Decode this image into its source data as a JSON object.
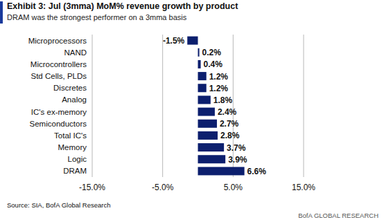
{
  "chart_data": {
    "type": "bar",
    "orientation": "horizontal",
    "title": "Exhibit 3: Jul (3mma) MoM% revenue growth by product",
    "subtitle": "DRAM was the strongest performer on a 3mma basis",
    "categories": [
      "Microprocessors",
      "NAND",
      "Microcontrollers",
      "Std Cells, PLDs",
      "Discretes",
      "Analog",
      "IC's ex-memory",
      "Semiconductors",
      "Total IC's",
      "Memory",
      "Logic",
      "DRAM"
    ],
    "values": [
      -1.5,
      0.2,
      0.4,
      1.2,
      1.2,
      1.8,
      2.4,
      2.7,
      2.8,
      3.7,
      3.9,
      6.6
    ],
    "value_labels": [
      "-1.5%",
      "0.2%",
      "0.4%",
      "1.2%",
      "1.2%",
      "1.8%",
      "2.4%",
      "2.7%",
      "2.8%",
      "3.7%",
      "3.9%",
      "6.6%"
    ],
    "color": "#0c1f6e",
    "xlim": [
      -15,
      15
    ],
    "xticks": [
      {
        "value": -15,
        "label": "-15.0%"
      },
      {
        "value": -5,
        "label": "-5.0%"
      },
      {
        "value": 5,
        "label": "5.0%"
      },
      {
        "value": 15,
        "label": "15.0%"
      }
    ],
    "grid": true,
    "data_labels": true,
    "annotations": [
      "Source: SIA, BofA Global Research",
      "BofA GLOBAL RESEARCH"
    ]
  }
}
